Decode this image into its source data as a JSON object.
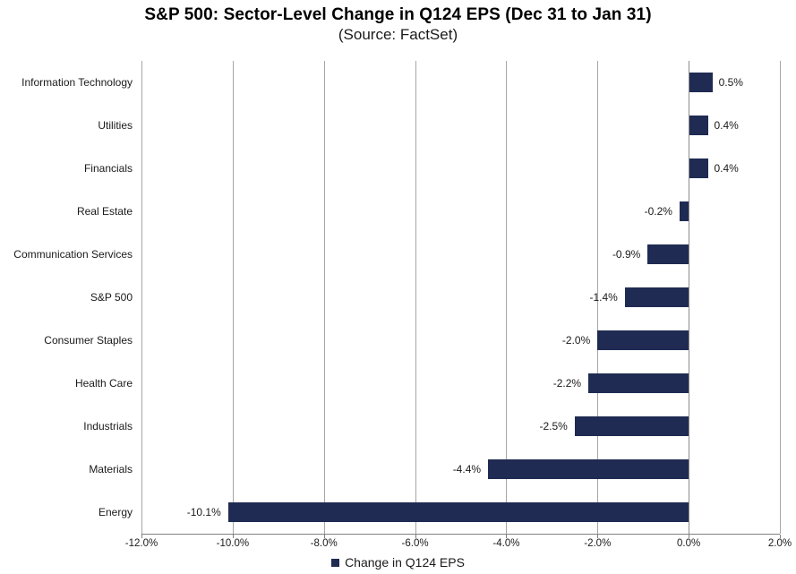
{
  "title": "S&P 500: Sector-Level Change in Q124 EPS (Dec 31 to Jan 31)",
  "subtitle": "(Source: FactSet)",
  "legend": {
    "label": "Change in Q124 EPS",
    "marker_color": "#1f2b52"
  },
  "colors": {
    "bar": "#1f2b52",
    "gridline": "#a6a6a6",
    "axis": "#808080",
    "text": "#1a1a1a",
    "background": "#ffffff"
  },
  "chart_data": {
    "type": "bar",
    "orientation": "horizontal",
    "title": "S&P 500: Sector-Level Change in Q124 EPS (Dec 31 to Jan 31)",
    "subtitle": "(Source: FactSet)",
    "series_name": "Change in Q124 EPS",
    "categories": [
      "Information Technology",
      "Utilities",
      "Financials",
      "Real Estate",
      "Communication Services",
      "S&P 500",
      "Consumer Staples",
      "Health Care",
      "Industrials",
      "Materials",
      "Energy"
    ],
    "values": [
      0.5,
      0.4,
      0.4,
      -0.2,
      -0.9,
      -1.4,
      -2.0,
      -2.2,
      -2.5,
      -4.4,
      -10.1
    ],
    "value_labels": [
      "0.5%",
      "0.4%",
      "0.4%",
      "-0.2%",
      "-0.9%",
      "-1.4%",
      "-2.0%",
      "-2.2%",
      "-2.5%",
      "-4.4%",
      "-10.1%"
    ],
    "xlim": [
      -12,
      2
    ],
    "x_tick_values": [
      -12,
      -10,
      -8,
      -6,
      -4,
      -2,
      0,
      2
    ],
    "x_tick_labels": [
      "-12.0%",
      "-10.0%",
      "-8.0%",
      "-6.0%",
      "-4.0%",
      "-2.0%",
      "0.0%",
      "2.0%"
    ],
    "grid": "vertical-gridlines-on",
    "legend_position": "bottom-center",
    "bar_color": "#1f2b52"
  }
}
